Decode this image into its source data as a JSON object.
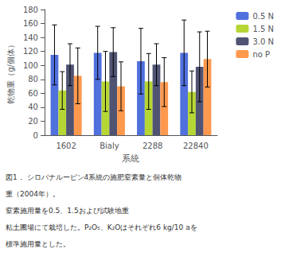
{
  "chart_data": {
    "type": "bar",
    "xlabel": "系統",
    "ylabel": "乾物重（g/個体）",
    "categories": [
      "1602",
      "Bialy",
      "2288",
      "22840"
    ],
    "series": [
      {
        "name": "0.5 N",
        "values": [
          115,
          118,
          106,
          118
        ],
        "errors": [
          43,
          38,
          47,
          47
        ]
      },
      {
        "name": "1.5 N",
        "values": [
          64,
          77,
          77,
          62
        ],
        "errors": [
          27,
          43,
          40,
          30
        ]
      },
      {
        "name": "3.0 N",
        "values": [
          101,
          119,
          101,
          98
        ],
        "errors": [
          30,
          35,
          30,
          50
        ]
      },
      {
        "name": "no P",
        "values": [
          85,
          70,
          76,
          109
        ],
        "errors": [
          40,
          35,
          35,
          40
        ]
      }
    ],
    "ylim": [
      0,
      180
    ],
    "yticks": [
      0,
      20,
      40,
      60,
      80,
      100,
      120,
      140,
      160,
      180
    ],
    "grid": false,
    "legend": "upper right",
    "annotations": [
      "図1． シロバナルーピン4系統の施肥窒素量と個体乾物",
      "重（2004年）。",
      "窒素施用量を0.5、1.5および試験地重",
      "粘土圃場にて栽培した。P₂O₅、K₂Oはそれぞれ6 kg/10 aを",
      "標準施用量とした。"
    ]
  }
}
